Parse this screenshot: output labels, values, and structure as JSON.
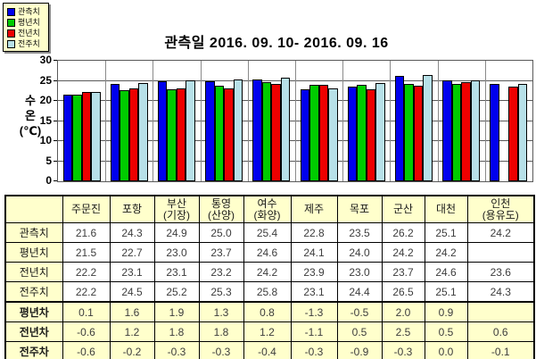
{
  "title": "관측일 2016. 09. 10- 2016. 09. 16",
  "legend": {
    "items": [
      {
        "label": "관측치",
        "color": "#0000ee"
      },
      {
        "label": "평년치",
        "color": "#00cc00"
      },
      {
        "label": "전년치",
        "color": "#ee0000"
      },
      {
        "label": "전주치",
        "color": "#b7e0e8"
      }
    ]
  },
  "y_axis": {
    "title_lines": [
      "수",
      "온",
      "(℃)"
    ],
    "ticks": [
      30,
      25,
      20,
      15,
      10,
      5,
      0
    ]
  },
  "chart_data": {
    "type": "bar",
    "title": "관측일 2016. 09. 10- 2016. 09. 16",
    "xlabel": "",
    "ylabel": "수온(℃)",
    "ylim": [
      0,
      30
    ],
    "grid": true,
    "legend_position": "top-left",
    "categories": [
      "주문진",
      "포항",
      "부산(기장)",
      "통영(산양)",
      "여수(화양)",
      "제주",
      "목포",
      "군산",
      "대천",
      "인천(용유도)"
    ],
    "series": [
      {
        "name": "관측치",
        "color": "#0000ee",
        "values": [
          21.6,
          24.3,
          24.9,
          25.0,
          25.4,
          22.8,
          23.5,
          26.2,
          25.1,
          24.2
        ]
      },
      {
        "name": "평년치",
        "color": "#00cc00",
        "values": [
          21.5,
          22.7,
          23.0,
          23.7,
          24.6,
          24.1,
          24.0,
          24.2,
          24.2,
          null
        ]
      },
      {
        "name": "전년치",
        "color": "#ee0000",
        "values": [
          22.2,
          23.1,
          23.1,
          23.2,
          24.2,
          23.9,
          23.0,
          23.7,
          24.6,
          23.6
        ]
      },
      {
        "name": "전주치",
        "color": "#b7e0e8",
        "values": [
          22.2,
          24.5,
          25.2,
          25.3,
          25.8,
          23.1,
          24.4,
          26.5,
          25.1,
          24.3
        ]
      }
    ]
  },
  "table": {
    "corner_label": "",
    "col_headers": [
      [
        "주문진"
      ],
      [
        "포항"
      ],
      [
        "부산",
        "(기장)"
      ],
      [
        "통영",
        "(산양)"
      ],
      [
        "여수",
        "(화양)"
      ],
      [
        "제주"
      ],
      [
        "목포"
      ],
      [
        "군산"
      ],
      [
        "대천"
      ],
      [
        "인천",
        "(용유도)"
      ]
    ],
    "rows": [
      {
        "label": "관측치",
        "diff": false,
        "values": [
          "21.6",
          "24.3",
          "24.9",
          "25.0",
          "25.4",
          "22.8",
          "23.5",
          "26.2",
          "25.1",
          "24.2"
        ]
      },
      {
        "label": "평년치",
        "diff": false,
        "values": [
          "21.5",
          "22.7",
          "23.0",
          "23.7",
          "24.6",
          "24.1",
          "24.0",
          "24.2",
          "24.2",
          ""
        ]
      },
      {
        "label": "전년치",
        "diff": false,
        "values": [
          "22.2",
          "23.1",
          "23.1",
          "23.2",
          "24.2",
          "23.9",
          "23.0",
          "23.7",
          "24.6",
          "23.6"
        ]
      },
      {
        "label": "전주치",
        "diff": false,
        "values": [
          "22.2",
          "24.5",
          "25.2",
          "25.3",
          "25.8",
          "23.1",
          "24.4",
          "26.5",
          "25.1",
          "24.3"
        ]
      },
      {
        "label": "평년차",
        "diff": true,
        "values": [
          "0.1",
          "1.6",
          "1.9",
          "1.3",
          "0.8",
          "-1.3",
          "-0.5",
          "2.0",
          "0.9",
          ""
        ]
      },
      {
        "label": "전년차",
        "diff": true,
        "values": [
          "-0.6",
          "1.2",
          "1.8",
          "1.8",
          "1.2",
          "-1.1",
          "0.5",
          "2.5",
          "0.5",
          "0.6"
        ]
      },
      {
        "label": "전주차",
        "diff": true,
        "values": [
          "-0.6",
          "-0.2",
          "-0.3",
          "-0.3",
          "-0.4",
          "-0.3",
          "-0.9",
          "-0.3",
          "0.0",
          "-0.1"
        ]
      }
    ]
  }
}
